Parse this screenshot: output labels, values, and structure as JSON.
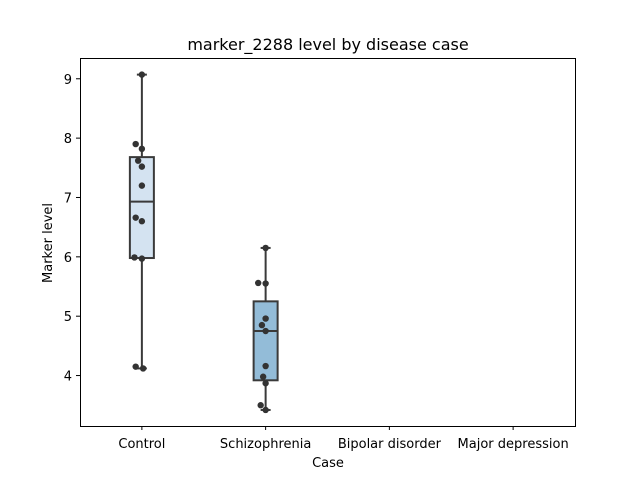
{
  "chart_data": {
    "type": "box",
    "title": "marker_2288 level by disease case",
    "xlabel": "Case",
    "ylabel": "Marker level",
    "ylim": [
      3.15,
      9.35
    ],
    "yticks": [
      "4",
      "5",
      "6",
      "7",
      "8",
      "9"
    ],
    "grid": false,
    "categories": [
      "Control",
      "Schizophrenia",
      "Bipolar disorder",
      "Major depression"
    ],
    "colors": {
      "box_fills": [
        "#d4e3f1",
        "#93bcd8",
        "#4f8fc4",
        "#1f5c9e"
      ],
      "box_edge": "#3a3a3a",
      "points": "#333333"
    },
    "boxes": [
      {
        "category": "Control",
        "q1": 5.98,
        "median": 6.93,
        "q3": 7.68,
        "whisker_low": 4.12,
        "whisker_high": 9.07
      },
      {
        "category": "Schizophrenia",
        "q1": 3.92,
        "median": 4.75,
        "q3": 5.25,
        "whisker_low": 3.42,
        "whisker_high": 6.15
      },
      null,
      null
    ],
    "points": [
      {
        "category": "Control",
        "values": [
          9.07,
          7.9,
          7.82,
          7.62,
          7.52,
          7.2,
          6.66,
          6.6,
          5.99,
          5.97,
          4.15,
          4.12
        ],
        "jitter": [
          0.0,
          -0.05,
          0.0,
          -0.03,
          0.0,
          0.0,
          -0.05,
          0.0,
          -0.06,
          0.0,
          -0.05,
          0.01
        ]
      },
      {
        "category": "Schizophrenia",
        "values": [
          6.15,
          5.56,
          5.55,
          4.96,
          4.85,
          4.75,
          4.16,
          3.98,
          3.87,
          3.5,
          3.42
        ],
        "jitter": [
          0.0,
          -0.06,
          0.0,
          0.0,
          -0.03,
          0.0,
          0.0,
          -0.02,
          0.0,
          -0.04,
          0.0
        ]
      }
    ]
  }
}
